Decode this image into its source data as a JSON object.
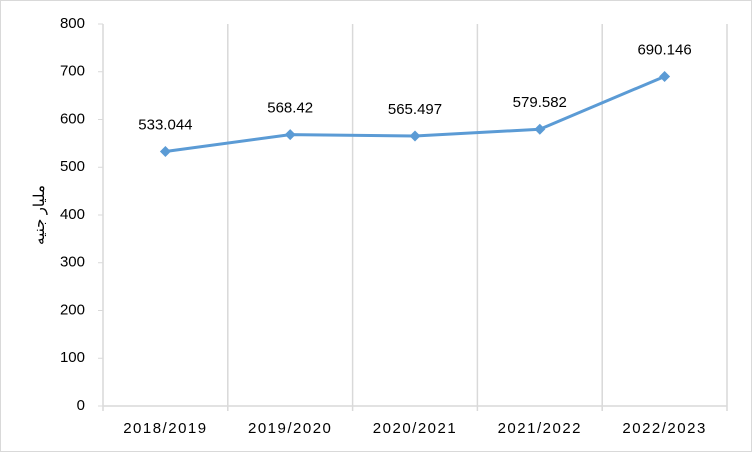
{
  "chart_data": {
    "type": "line",
    "y_label": "مليار جنيه",
    "categories": [
      "2018/2019",
      "2019/2020",
      "2020/2021",
      "2021/2022",
      "2022/2023"
    ],
    "series": [
      {
        "name": "مليار جنيه",
        "color": "#5b9bd5",
        "values": [
          533.044,
          568.42,
          565.497,
          579.582,
          690.146
        ]
      }
    ],
    "ylim": [
      0,
      800
    ],
    "yticks": [
      0,
      100,
      200,
      300,
      400,
      500,
      600,
      700,
      800
    ],
    "grid": "x",
    "data_labels": true
  }
}
